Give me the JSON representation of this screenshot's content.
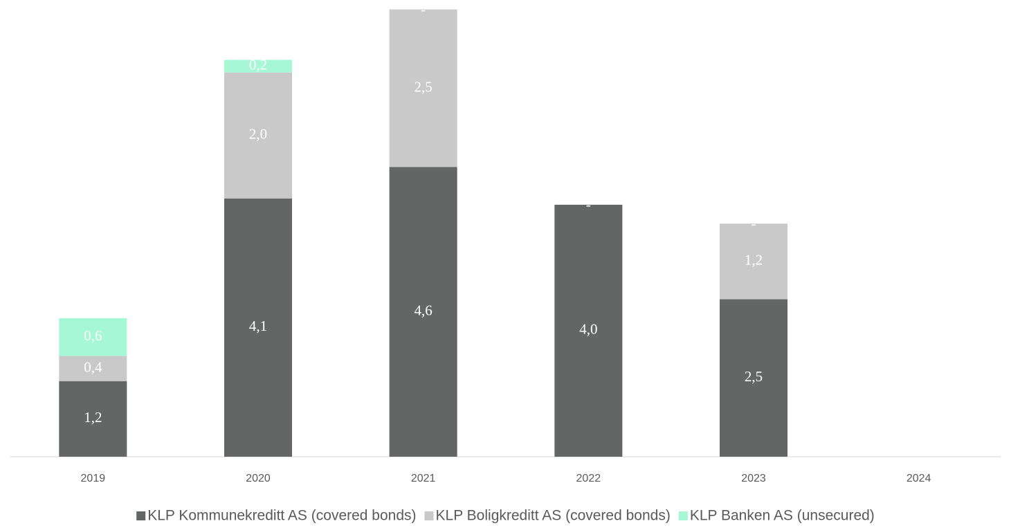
{
  "chart_data": {
    "type": "stacked_bar",
    "categories": [
      "2019",
      "2020",
      "2021",
      "2022",
      "2023",
      "2024"
    ],
    "series": [
      {
        "name": "KLP Kommunekreditt AS (covered bonds)",
        "color": "#636664",
        "values": [
          1.2,
          4.1,
          4.6,
          4.0,
          2.5,
          null
        ],
        "value_labels": [
          "1,2",
          "4,1",
          "4,6",
          "4,0",
          "2,5",
          null
        ]
      },
      {
        "name": "KLP Boligkreditt AS (covered bonds)",
        "color": "#c8c9c8",
        "values": [
          0.4,
          2.0,
          2.5,
          0,
          1.2,
          null
        ],
        "value_labels": [
          "0,4",
          "2,0",
          "2,5",
          "-",
          "1,2",
          null
        ]
      },
      {
        "name": "KLP Banken AS (unsecured)",
        "color": "#a6f7d6",
        "values": [
          0.6,
          0.2,
          0,
          0,
          0,
          null
        ],
        "value_labels": [
          "0,6",
          "0,2",
          "-",
          "-",
          "-",
          null
        ]
      }
    ],
    "ylim": [
      0,
      7.25
    ]
  }
}
